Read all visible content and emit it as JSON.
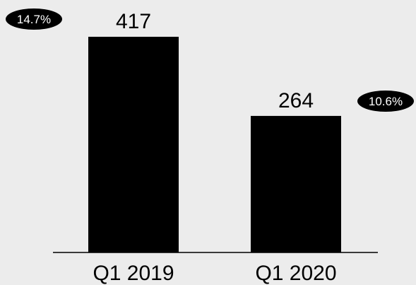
{
  "chart_data": {
    "type": "bar",
    "title": "",
    "xlabel": "",
    "ylabel": "",
    "categories": [
      "Q1 2019",
      "Q1 2020"
    ],
    "values": [
      417,
      264
    ],
    "value_labels": [
      "417",
      "264"
    ],
    "percent_badges": [
      "14.7%",
      "10.6%"
    ],
    "ylim": [
      0,
      417
    ],
    "grid": false,
    "legend": "none",
    "colors": {
      "bar": "#000000",
      "background": "#ececec",
      "badge": "#000000",
      "badge_text": "#ffffff"
    }
  }
}
